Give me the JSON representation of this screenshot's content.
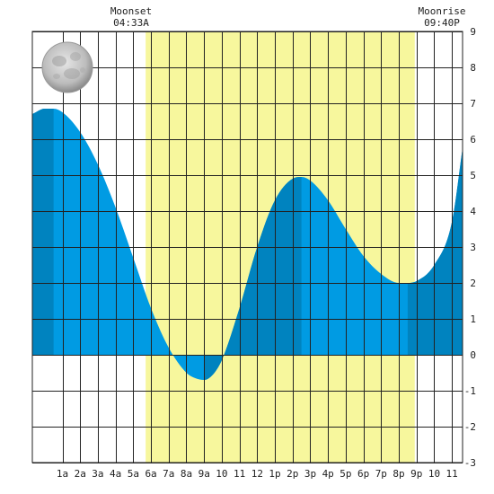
{
  "moonset": {
    "label": "Moonset",
    "time": "04:33A",
    "hour": 4.55
  },
  "moonrise": {
    "label": "Moonrise",
    "time": "09:40P",
    "hour": 21.67
  },
  "moon_phase_icon": "full-moon-icon",
  "chart_data": {
    "type": "area",
    "title": "",
    "xlabel": "",
    "ylabel": "",
    "xlim": [
      -0.7,
      23.6
    ],
    "ylim": [
      -3,
      9
    ],
    "grid": true,
    "x_tick_labels": [
      "1a",
      "2a",
      "3a",
      "4a",
      "5a",
      "6a",
      "7a",
      "8a",
      "9a",
      "10",
      "11",
      "12",
      "1p",
      "2p",
      "3p",
      "4p",
      "5p",
      "6p",
      "7p",
      "8p",
      "9p",
      "10",
      "11"
    ],
    "y_tick_labels": [
      "-3",
      "-2",
      "-1",
      "0",
      "1",
      "2",
      "3",
      "4",
      "5",
      "6",
      "7",
      "8",
      "9"
    ],
    "daylight_window": [
      5.7,
      20.9
    ],
    "series": [
      {
        "x": [
          -0.7,
          0,
          0.5,
          1,
          2,
          3,
          4,
          5,
          6,
          7,
          8,
          8.5,
          9,
          9.5,
          10,
          11,
          12,
          13,
          14,
          14.5,
          15,
          16,
          17,
          18,
          19,
          20,
          20.5,
          21,
          22,
          23,
          23.6
        ],
        "values": [
          6.7,
          6.85,
          6.85,
          6.75,
          6.2,
          5.3,
          4.1,
          2.7,
          1.3,
          0.2,
          -0.5,
          -0.65,
          -0.7,
          -0.55,
          -0.15,
          1.3,
          3.0,
          4.3,
          4.9,
          4.95,
          4.85,
          4.3,
          3.5,
          2.75,
          2.25,
          2.0,
          2.0,
          2.05,
          2.5,
          3.7,
          5.75
        ]
      }
    ],
    "extremes": [
      {
        "type": "high",
        "x": 0.5,
        "y": 6.85
      },
      {
        "type": "low",
        "x": 9.0,
        "y": -0.7
      },
      {
        "type": "high",
        "x": 14.5,
        "y": 4.95
      },
      {
        "type": "low",
        "x": 20.5,
        "y": 2.0
      }
    ]
  },
  "colors": {
    "daylight": "#f7f79d",
    "water_light": "#009be3",
    "water_dark": "#0083bf",
    "grid": "#222222",
    "background": "#ffffff"
  }
}
